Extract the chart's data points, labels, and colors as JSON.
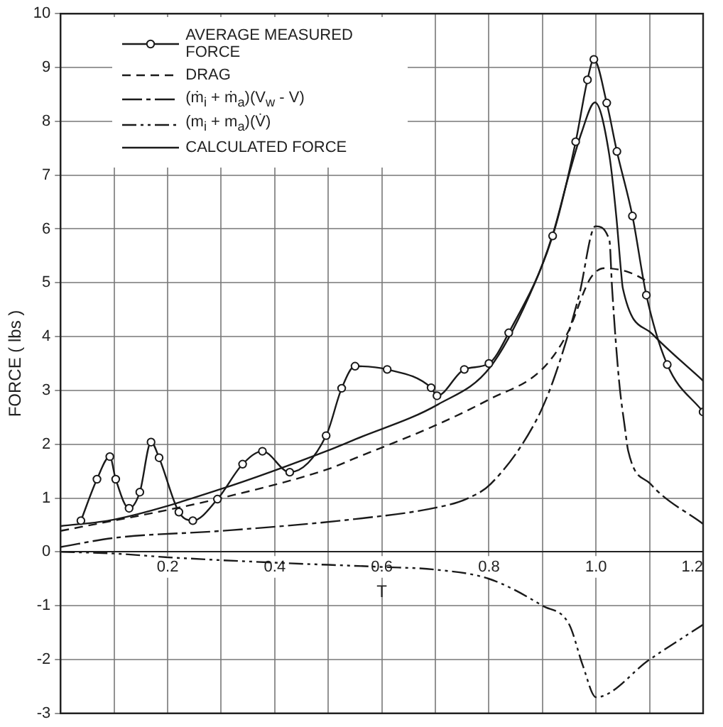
{
  "chart_data": {
    "type": "line",
    "xlabel": "T",
    "ylabel": "FORCE ( lbs )",
    "xlim": [
      0,
      1.2
    ],
    "ylim": [
      -3,
      10
    ],
    "xticks": [
      {
        "value": 0,
        "label": null
      },
      {
        "value": 0.1,
        "label": null
      },
      0.2,
      {
        "value": 0.3,
        "label": null
      },
      0.4,
      {
        "value": 0.5,
        "label": null
      },
      0.6,
      {
        "value": 0.7,
        "label": null
      },
      0.8,
      {
        "value": 0.9,
        "label": null
      },
      {
        "value": 1,
        "label": "1.0"
      },
      {
        "value": 1.1,
        "label": null
      },
      1.2
    ],
    "yticks": [
      -3,
      -2,
      -1,
      0,
      1,
      2,
      3,
      4,
      5,
      6,
      7,
      8,
      9,
      10
    ],
    "grid": true,
    "legend": "top left",
    "series": [
      {
        "name": "AVERAGE MEASURED FORCE",
        "color": "#1a1a1a",
        "marker": "circle",
        "line_style": "solid",
        "x": [
          0.038,
          0.068,
          0.092,
          0.103,
          0.128,
          0.148,
          0.169,
          0.184,
          0.221,
          0.247,
          0.293,
          0.34,
          0.377,
          0.428,
          0.496,
          0.525,
          0.55,
          0.61,
          0.692,
          0.703,
          0.754,
          0.8,
          0.837,
          0.919,
          0.962,
          0.984,
          0.996,
          1.02,
          1.039,
          1.068,
          1.094,
          1.133,
          1.2
        ],
        "values": [
          0.58,
          1.35,
          1.77,
          1.35,
          0.81,
          1.11,
          2.04,
          1.75,
          0.74,
          0.58,
          0.98,
          1.63,
          1.87,
          1.48,
          2.16,
          3.04,
          3.45,
          3.39,
          3.05,
          2.9,
          3.39,
          3.5,
          4.07,
          5.87,
          7.62,
          8.77,
          9.15,
          8.34,
          7.44,
          6.24,
          4.77,
          3.48,
          2.6
        ]
      },
      {
        "name": "DRAG",
        "color": "#1a1a1a",
        "marker": "none",
        "line_style": "dashed",
        "x": [
          0,
          0.2,
          0.3,
          0.5,
          0.55,
          0.7,
          0.8,
          0.9,
          0.946,
          0.99,
          1.016,
          1.06,
          1.098
        ],
        "values": [
          0.39,
          0.78,
          1.0,
          1.54,
          1.74,
          2.35,
          2.83,
          3.4,
          4.05,
          5.09,
          5.27,
          5.2,
          5.02
        ]
      },
      {
        "name": "(ṁ$_{i}$ + ṁ$_{a}$)(V$_{w}$ - V)",
        "color": "#1a1a1a",
        "marker": "none",
        "line_style": "dashed",
        "x": [
          0,
          0.1,
          0.3,
          0.55,
          0.705,
          0.757,
          0.803,
          0.886,
          0.92,
          0.968,
          0.999,
          1.025,
          1.03,
          1.043,
          1.054,
          1.06,
          1.102,
          1.2
        ],
        "values": [
          0.09,
          0.26,
          0.39,
          0.61,
          0.83,
          0.98,
          1.26,
          2.4,
          3.18,
          4.75,
          6.05,
          5.79,
          4.9,
          3.18,
          2.3,
          1.88,
          1.26,
          0.52
        ]
      },
      {
        "name": "(m$_{i}$ + m$_{a}$)(V̇)",
        "color": "#1a1a1a",
        "marker": "none",
        "line_style": "dotted",
        "x": [
          0,
          0.1,
          0.2,
          0.4,
          0.6,
          0.7,
          0.8,
          0.9,
          0.95,
          0.975,
          1.0,
          1.1,
          1.2
        ],
        "values": [
          0,
          -0.03,
          -0.1,
          -0.2,
          -0.28,
          -0.33,
          -0.5,
          -1.0,
          -1.35,
          -2.1,
          -2.7,
          -2.0,
          -1.35
        ]
      },
      {
        "name": "CALCULATED FORCE",
        "color": "#1a1a1a",
        "marker": "none",
        "line_style": "solid",
        "x": [
          0,
          0.1,
          0.3,
          0.506,
          0.55,
          0.705,
          0.803,
          0.886,
          0.921,
          0.947,
          0.973,
          0.998,
          1.025,
          1.038,
          1.047,
          1.05,
          1.105,
          1.2
        ],
        "values": [
          0.48,
          0.6,
          1.17,
          1.91,
          2.09,
          2.74,
          3.44,
          5.0,
          5.96,
          6.92,
          7.79,
          8.35,
          7.36,
          6.22,
          5.18,
          4.9,
          4.05,
          3.18
        ]
      }
    ]
  }
}
